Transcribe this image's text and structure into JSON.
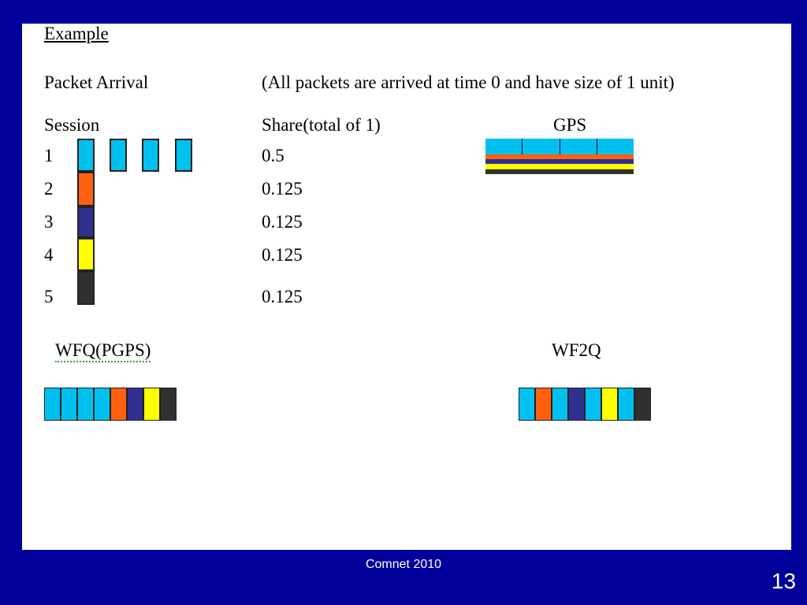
{
  "slide": {
    "heading": "Example",
    "packet_arrival_label": "Packet Arrival",
    "packet_arrival_note": "(All packets are arrived at time 0 and have size of 1 unit)",
    "session_header": "Session",
    "share_header": "Share(total of 1)",
    "gps_title": "GPS",
    "wfq_title": "WFQ(PGPS)",
    "wf2q_title": "WF2Q"
  },
  "colors": {
    "session_1": "#00c0f0",
    "session_2": "#ff6010",
    "session_3": "#303090",
    "session_4": "#ffff00",
    "session_5": "#303030",
    "frame": "#00009a"
  },
  "sessions": [
    {
      "id": "1",
      "share": "0.5",
      "packets": 4,
      "color": "#00c0f0"
    },
    {
      "id": "2",
      "share": "0.125",
      "packets": 1,
      "color": "#ff6010"
    },
    {
      "id": "3",
      "share": "0.125",
      "packets": 1,
      "color": "#303090"
    },
    {
      "id": "4",
      "share": "0.125",
      "packets": 1,
      "color": "#ffff00"
    },
    {
      "id": "5",
      "share": "0.125",
      "packets": 1,
      "color": "#303030"
    }
  ],
  "gps_service_order": [
    "1",
    "2",
    "3",
    "4",
    "5"
  ],
  "wfq_sequence": [
    "1",
    "1",
    "1",
    "1",
    "2",
    "3",
    "4",
    "5"
  ],
  "wf2q_sequence": [
    "1",
    "2",
    "1",
    "3",
    "1",
    "4",
    "1",
    "5"
  ],
  "footer": {
    "text": "Comnet 2010",
    "page_number": "13"
  }
}
